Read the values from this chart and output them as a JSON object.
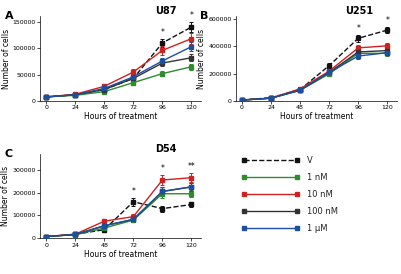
{
  "x": [
    0,
    24,
    48,
    72,
    96,
    120
  ],
  "panels": [
    {
      "title": "U87",
      "label": "A",
      "ylim": [
        0,
        160000
      ],
      "yticks": [
        0,
        50000,
        100000,
        150000
      ],
      "series": {
        "V": {
          "y": [
            8000,
            12000,
            22000,
            43000,
            110000,
            140000
          ],
          "err": [
            500,
            1000,
            2000,
            4000,
            7000,
            9000
          ],
          "color": "#111111",
          "dashed": true
        },
        "1nM": {
          "y": [
            8000,
            11000,
            18000,
            35000,
            52000,
            65000
          ],
          "err": [
            500,
            800,
            2000,
            3000,
            5000,
            6000
          ],
          "color": "#2e8b2e",
          "dashed": false
        },
        "10nM": {
          "y": [
            8000,
            13000,
            28000,
            55000,
            96000,
            118000
          ],
          "err": [
            500,
            1200,
            3000,
            5000,
            8000,
            10000
          ],
          "color": "#cc2222",
          "dashed": false
        },
        "100nM": {
          "y": [
            8000,
            12000,
            22000,
            43000,
            72000,
            82000
          ],
          "err": [
            500,
            900,
            2000,
            4000,
            6000,
            7000
          ],
          "color": "#333333",
          "dashed": false
        },
        "1uM": {
          "y": [
            8000,
            12000,
            24000,
            46000,
            76000,
            103000
          ],
          "err": [
            500,
            900,
            2000,
            4000,
            6000,
            8000
          ],
          "color": "#1c4fa0",
          "dashed": false
        }
      },
      "stars": {
        "96": "*",
        "120": "*"
      }
    },
    {
      "title": "U251",
      "label": "B",
      "ylim": [
        0,
        620000
      ],
      "yticks": [
        0,
        200000,
        400000,
        600000
      ],
      "series": {
        "V": {
          "y": [
            8000,
            25000,
            85000,
            260000,
            460000,
            520000
          ],
          "err": [
            1000,
            3000,
            8000,
            20000,
            25000,
            22000
          ],
          "color": "#111111",
          "dashed": true
        },
        "1nM": {
          "y": [
            8000,
            22000,
            80000,
            200000,
            350000,
            350000
          ],
          "err": [
            1000,
            2500,
            7000,
            18000,
            22000,
            20000
          ],
          "color": "#2e8b2e",
          "dashed": false
        },
        "10nM": {
          "y": [
            8000,
            22000,
            90000,
            220000,
            390000,
            405000
          ],
          "err": [
            1000,
            2500,
            8000,
            20000,
            24000,
            22000
          ],
          "color": "#cc2222",
          "dashed": false
        },
        "100nM": {
          "y": [
            8000,
            22000,
            80000,
            210000,
            360000,
            370000
          ],
          "err": [
            1000,
            2500,
            7000,
            18000,
            22000,
            20000
          ],
          "color": "#333333",
          "dashed": false
        },
        "1uM": {
          "y": [
            8000,
            22000,
            80000,
            210000,
            330000,
            355000
          ],
          "err": [
            1000,
            2500,
            7000,
            18000,
            22000,
            20000
          ],
          "color": "#1c4fa0",
          "dashed": false
        }
      },
      "stars": {
        "96": "*",
        "120": "*"
      }
    },
    {
      "title": "D54",
      "label": "C",
      "ylim": [
        0,
        370000
      ],
      "yticks": [
        0,
        100000,
        200000,
        300000
      ],
      "series": {
        "V": {
          "y": [
            8000,
            18000,
            38000,
            160000,
            130000,
            148000
          ],
          "err": [
            500,
            2000,
            5000,
            18000,
            13000,
            12000
          ],
          "color": "#111111",
          "dashed": true
        },
        "1nM": {
          "y": [
            8000,
            16000,
            45000,
            80000,
            195000,
            195000
          ],
          "err": [
            500,
            1500,
            6000,
            9000,
            17000,
            16000
          ],
          "color": "#2e8b2e",
          "dashed": false
        },
        "10nM": {
          "y": [
            8000,
            18000,
            75000,
            95000,
            255000,
            265000
          ],
          "err": [
            500,
            1800,
            8000,
            11000,
            21000,
            20000
          ],
          "color": "#cc2222",
          "dashed": false
        },
        "100nM": {
          "y": [
            8000,
            17000,
            55000,
            83000,
            205000,
            225000
          ],
          "err": [
            500,
            1600,
            7000,
            10000,
            18000,
            17000
          ],
          "color": "#333333",
          "dashed": false
        },
        "1uM": {
          "y": [
            8000,
            17000,
            55000,
            83000,
            205000,
            225000
          ],
          "err": [
            500,
            1600,
            7000,
            10000,
            18000,
            17000
          ],
          "color": "#1c4fa0",
          "dashed": false
        }
      },
      "stars": {
        "72": "*",
        "96": "*",
        "120": "**"
      }
    }
  ],
  "legend": {
    "labels": [
      "V",
      "1 nM",
      "10 nM",
      "100 nM",
      "1 μM"
    ],
    "colors": [
      "#111111",
      "#2e8b2e",
      "#cc2222",
      "#333333",
      "#1c4fa0"
    ],
    "dashed": [
      true,
      false,
      false,
      false,
      false
    ]
  },
  "xlabel": "Hours of treatment",
  "ylabel": "Number of cells",
  "bg_color": "#ffffff"
}
